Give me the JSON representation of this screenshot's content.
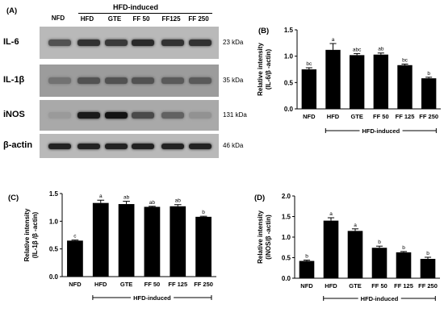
{
  "western_blot": {
    "letter": "(A)",
    "group_label": "HFD-induced",
    "lanes": [
      "NFD",
      "HFD",
      "GTE",
      "FF 50",
      "FF125",
      "FF 250"
    ],
    "rows": [
      {
        "protein": "IL-6",
        "kda": "23 kDa",
        "intensity": [
          0.55,
          0.75,
          0.7,
          0.8,
          0.75,
          0.75
        ]
      },
      {
        "protein": "IL-1β",
        "kda": "35 kDa",
        "intensity": [
          0.35,
          0.55,
          0.55,
          0.55,
          0.5,
          0.5
        ]
      },
      {
        "protein": "iNOS",
        "kda": "131 kDa",
        "intensity": [
          0.1,
          0.9,
          0.95,
          0.6,
          0.45,
          0.15
        ]
      },
      {
        "protein": "β-actin",
        "kda": "46 kDa",
        "intensity": [
          0.85,
          0.85,
          0.85,
          0.85,
          0.85,
          0.85
        ]
      }
    ]
  },
  "chart_data": [
    {
      "letter": "(B)",
      "type": "bar",
      "categories": [
        "NFD",
        "HFD",
        "GTE",
        "FF 50",
        "FF 125",
        "FF 250"
      ],
      "values": [
        0.75,
        1.12,
        1.02,
        1.03,
        0.83,
        0.58
      ],
      "errors": [
        0.03,
        0.12,
        0.03,
        0.03,
        0.02,
        0.02
      ],
      "sig": [
        "bc",
        "a",
        "abc",
        "ab",
        "bc",
        "b"
      ],
      "ylabel_lines": [
        "Relative intensity",
        "(IL-6/β -actin)"
      ],
      "ylim": [
        0,
        1.5
      ],
      "yticks": [
        0.0,
        0.5,
        1.0,
        1.5
      ],
      "ytick_labels": [
        "0.0",
        "0.5",
        "1.0",
        "1.5"
      ],
      "group_label": "HFD-induced"
    },
    {
      "letter": "(C)",
      "type": "bar",
      "categories": [
        "NFD",
        "HFD",
        "GTE",
        "FF 50",
        "FF 125",
        "FF 250"
      ],
      "values": [
        0.65,
        1.33,
        1.31,
        1.26,
        1.27,
        1.08
      ],
      "errors": [
        0.01,
        0.05,
        0.05,
        0.01,
        0.03,
        0.01
      ],
      "sig": [
        "c",
        "a",
        "ab",
        "ab",
        "ab",
        "b"
      ],
      "ylabel_lines": [
        "Relative intensity",
        "(IL-1β /β -actin)"
      ],
      "ylim": [
        0,
        1.5
      ],
      "yticks": [
        0.0,
        0.5,
        1.0,
        1.5
      ],
      "ytick_labels": [
        "0.0",
        "0.5",
        "1.0",
        "1.5"
      ],
      "group_label": "HFD-induced"
    },
    {
      "letter": "(D)",
      "type": "bar",
      "categories": [
        "NFD",
        "HFD",
        "GTE",
        "FF 50",
        "FF 125",
        "FF 250"
      ],
      "values": [
        0.42,
        1.4,
        1.15,
        0.74,
        0.63,
        0.47
      ],
      "errors": [
        0.02,
        0.07,
        0.05,
        0.04,
        0.02,
        0.04
      ],
      "sig": [
        "b",
        "a",
        "a",
        "b",
        "b",
        "b"
      ],
      "ylabel_lines": [
        "Relative intensity",
        "(iNOS/β -actin)"
      ],
      "ylim": [
        0,
        2.0
      ],
      "yticks": [
        0.0,
        0.5,
        1.0,
        1.5,
        2.0
      ],
      "ytick_labels": [
        "0.0",
        "0.5",
        "1.0",
        "1.5",
        "2.0"
      ],
      "group_label": "HFD-induced"
    }
  ]
}
